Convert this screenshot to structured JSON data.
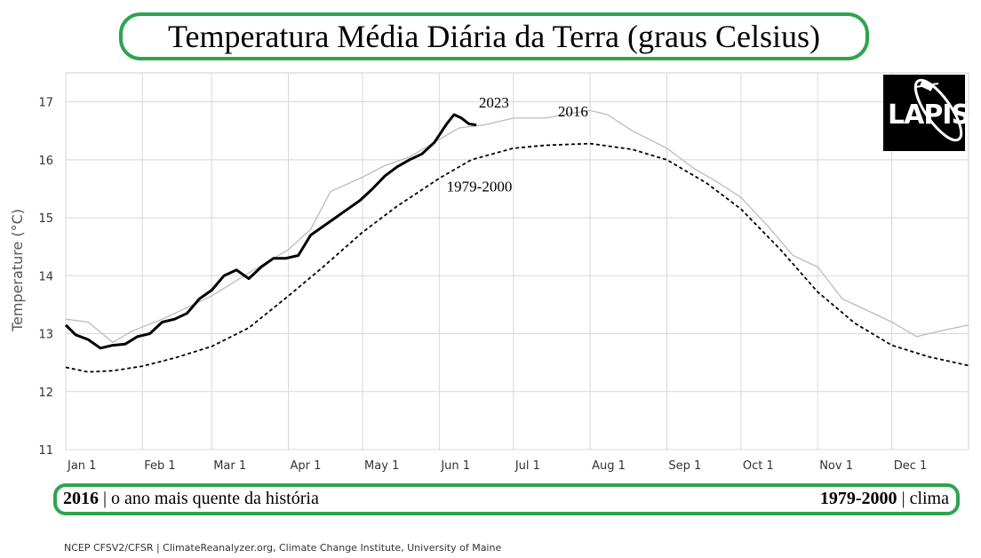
{
  "header": {
    "title": "Temperatura Média Diária da Terra (graus Celsius)"
  },
  "footer": {
    "left_bold": "2016",
    "left_text": " | o ano mais quente da história",
    "right_bold": "1979-2000",
    "right_text": " | clima"
  },
  "credit": "NCEP CFSV2/CFSR | ClimateReanalyzer.org, Climate Change Institute, University of Maine",
  "logo": {
    "text": "LAPIS",
    "icon": "satellite-orbit-icon"
  },
  "colors": {
    "frame_green": "#2ea44f",
    "series_2023": "#000000",
    "series_2016": "#bbbbbb",
    "series_climatology": "#000000"
  },
  "chart_data": {
    "type": "line",
    "title": "Temperatura Média Diária da Terra (graus Celsius)",
    "xlabel": "",
    "ylabel": "Temperature (°C)",
    "ylim": [
      11,
      17.5
    ],
    "xlim": [
      1,
      366
    ],
    "y_ticks": [
      11,
      12,
      13,
      14,
      15,
      16,
      17
    ],
    "x_ticks": [
      {
        "label": "Jan 1",
        "day": 1
      },
      {
        "label": "Feb 1",
        "day": 32
      },
      {
        "label": "Mar 1",
        "day": 60
      },
      {
        "label": "Apr 1",
        "day": 91
      },
      {
        "label": "May 1",
        "day": 121
      },
      {
        "label": "Jun 1",
        "day": 152
      },
      {
        "label": "Jul 1",
        "day": 182
      },
      {
        "label": "Aug 1",
        "day": 213
      },
      {
        "label": "Sep 1",
        "day": 244
      },
      {
        "label": "Oct 1",
        "day": 274
      },
      {
        "label": "Nov 1",
        "day": 305
      },
      {
        "label": "Dec 1",
        "day": 335
      }
    ],
    "grid": true,
    "series": [
      {
        "name": "1979-2000",
        "style": "dashed",
        "x": [
          1,
          10,
          20,
          32,
          45,
          60,
          75,
          91,
          105,
          121,
          135,
          152,
          165,
          182,
          195,
          213,
          230,
          244,
          260,
          274,
          290,
          305,
          320,
          335,
          350,
          366
        ],
        "y": [
          12.42,
          12.34,
          12.36,
          12.44,
          12.58,
          12.78,
          13.1,
          13.65,
          14.15,
          14.75,
          15.2,
          15.68,
          16.0,
          16.2,
          16.25,
          16.28,
          16.18,
          16.0,
          15.6,
          15.15,
          14.45,
          13.72,
          13.18,
          12.8,
          12.6,
          12.45
        ]
      },
      {
        "name": "2016",
        "style": "solid-gray",
        "x": [
          1,
          10,
          20,
          28,
          40,
          50,
          60,
          75,
          91,
          100,
          108,
          121,
          130,
          140,
          152,
          160,
          170,
          182,
          195,
          205,
          213,
          220,
          230,
          244,
          255,
          265,
          274,
          285,
          295,
          305,
          315,
          325,
          335,
          345,
          355,
          366
        ],
        "y": [
          13.25,
          13.2,
          12.85,
          13.05,
          13.25,
          13.45,
          13.65,
          14.05,
          14.45,
          14.8,
          15.45,
          15.7,
          15.9,
          16.05,
          16.35,
          16.55,
          16.6,
          16.72,
          16.72,
          16.8,
          16.85,
          16.78,
          16.5,
          16.2,
          15.85,
          15.6,
          15.35,
          14.85,
          14.35,
          14.15,
          13.6,
          13.4,
          13.2,
          12.95,
          13.05,
          13.15
        ]
      },
      {
        "name": "2023",
        "style": "solid-bold",
        "x": [
          1,
          5,
          10,
          15,
          20,
          25,
          30,
          35,
          40,
          45,
          50,
          55,
          60,
          65,
          70,
          75,
          80,
          85,
          90,
          95,
          100,
          105,
          110,
          115,
          120,
          125,
          130,
          135,
          140,
          145,
          150,
          155,
          158,
          161,
          164,
          167
        ],
        "y": [
          13.15,
          12.98,
          12.9,
          12.75,
          12.8,
          12.82,
          12.95,
          13.0,
          13.2,
          13.25,
          13.35,
          13.6,
          13.75,
          14.0,
          14.1,
          13.95,
          14.15,
          14.3,
          14.3,
          14.35,
          14.7,
          14.85,
          15.0,
          15.15,
          15.3,
          15.5,
          15.72,
          15.88,
          16.0,
          16.1,
          16.3,
          16.62,
          16.78,
          16.72,
          16.62,
          16.6
        ]
      }
    ],
    "annotations": [
      {
        "text": "2023",
        "x": 168,
        "y": 16.9
      },
      {
        "text": "2016",
        "x": 200,
        "y": 16.75
      },
      {
        "text": "1979-2000",
        "x": 155,
        "y": 15.45
      }
    ]
  }
}
